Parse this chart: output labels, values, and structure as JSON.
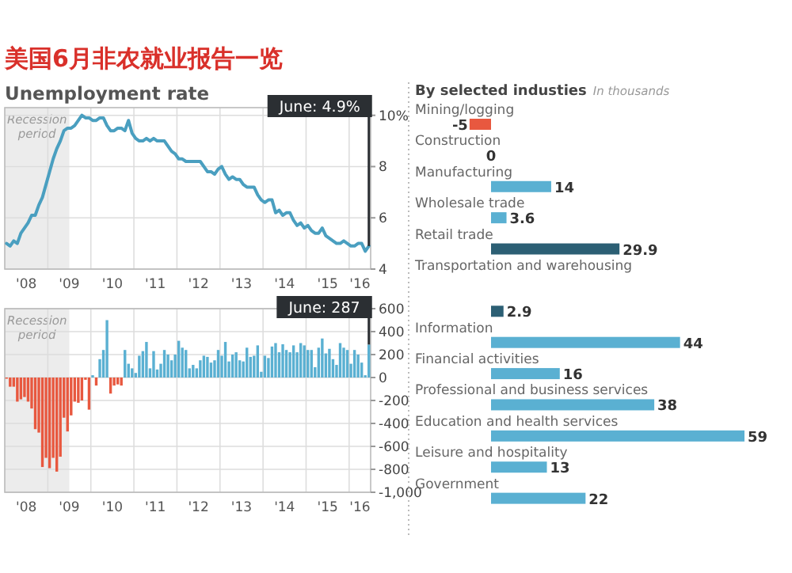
{
  "chart_data": [
    {
      "type": "line",
      "title": "美国6月非农就业报告一览",
      "subtitle": "Unemployment rate",
      "x": [
        "2008-01",
        "2008-02",
        "2008-03",
        "2008-04",
        "2008-05",
        "2008-06",
        "2008-07",
        "2008-08",
        "2008-09",
        "2008-10",
        "2008-11",
        "2008-12",
        "2009-01",
        "2009-02",
        "2009-03",
        "2009-04",
        "2009-05",
        "2009-06",
        "2009-07",
        "2009-08",
        "2009-09",
        "2009-10",
        "2009-11",
        "2009-12",
        "2010-01",
        "2010-02",
        "2010-03",
        "2010-04",
        "2010-05",
        "2010-06",
        "2010-07",
        "2010-08",
        "2010-09",
        "2010-10",
        "2010-11",
        "2010-12",
        "2011-01",
        "2011-02",
        "2011-03",
        "2011-04",
        "2011-05",
        "2011-06",
        "2011-07",
        "2011-08",
        "2011-09",
        "2011-10",
        "2011-11",
        "2011-12",
        "2012-01",
        "2012-02",
        "2012-03",
        "2012-04",
        "2012-05",
        "2012-06",
        "2012-07",
        "2012-08",
        "2012-09",
        "2012-10",
        "2012-11",
        "2012-12",
        "2013-01",
        "2013-02",
        "2013-03",
        "2013-04",
        "2013-05",
        "2013-06",
        "2013-07",
        "2013-08",
        "2013-09",
        "2013-10",
        "2013-11",
        "2013-12",
        "2014-01",
        "2014-02",
        "2014-03",
        "2014-04",
        "2014-05",
        "2014-06",
        "2014-07",
        "2014-08",
        "2014-09",
        "2014-10",
        "2014-11",
        "2014-12",
        "2015-01",
        "2015-02",
        "2015-03",
        "2015-04",
        "2015-05",
        "2015-06",
        "2015-07",
        "2015-08",
        "2015-09",
        "2015-10",
        "2015-11",
        "2015-12",
        "2016-01",
        "2016-02",
        "2016-03",
        "2016-04",
        "2016-05",
        "2016-06"
      ],
      "series": [
        {
          "color": "#4a9fc0",
          "values": [
            5.0,
            4.9,
            5.1,
            5.0,
            5.4,
            5.6,
            5.8,
            6.1,
            6.1,
            6.5,
            6.8,
            7.3,
            7.8,
            8.3,
            8.7,
            9.0,
            9.4,
            9.5,
            9.5,
            9.6,
            9.8,
            10.0,
            9.9,
            9.9,
            9.8,
            9.8,
            9.9,
            9.9,
            9.6,
            9.4,
            9.4,
            9.5,
            9.5,
            9.4,
            9.8,
            9.3,
            9.1,
            9.0,
            9.0,
            9.1,
            9.0,
            9.1,
            9.0,
            9.0,
            9.0,
            8.8,
            8.6,
            8.5,
            8.3,
            8.3,
            8.2,
            8.2,
            8.2,
            8.2,
            8.2,
            8.0,
            7.8,
            7.8,
            7.7,
            7.9,
            8.0,
            7.7,
            7.5,
            7.6,
            7.5,
            7.5,
            7.3,
            7.2,
            7.2,
            7.2,
            6.9,
            6.7,
            6.6,
            6.7,
            6.7,
            6.2,
            6.3,
            6.1,
            6.2,
            6.2,
            5.9,
            5.7,
            5.8,
            5.6,
            5.7,
            5.5,
            5.4,
            5.4,
            5.6,
            5.3,
            5.2,
            5.1,
            5.0,
            5.0,
            5.1,
            5.0,
            4.9,
            4.9,
            5.0,
            5.0,
            4.7,
            4.9
          ]
        }
      ],
      "xlim": [
        "2008-01",
        "2016-07"
      ],
      "xticks": [
        {
          "value": "2008-07",
          "label": "'08"
        },
        {
          "value": "2009-07",
          "label": "'09"
        },
        {
          "value": "2010-07",
          "label": "'10"
        },
        {
          "value": "2011-07",
          "label": "'11"
        },
        {
          "value": "2012-07",
          "label": "'12"
        },
        {
          "value": "2013-07",
          "label": "'13"
        },
        {
          "value": "2014-07",
          "label": "'14"
        },
        {
          "value": "2015-07",
          "label": "'15"
        },
        {
          "value": "2016-04",
          "label": "'16"
        },
        {
          "value": "2009-01",
          "label": null
        },
        {
          "value": "2010-01",
          "label": null
        },
        {
          "value": "2011-01",
          "label": null
        },
        {
          "value": "2012-01",
          "label": null
        },
        {
          "value": "2013-01",
          "label": null
        },
        {
          "value": "2014-01",
          "label": null
        },
        {
          "value": "2015-01",
          "label": null
        },
        {
          "value": "2016-01",
          "label": null
        }
      ],
      "ylim": [
        4,
        10.3
      ],
      "yticks": [
        4,
        6,
        8,
        {
          "value": 10,
          "label": "10%"
        }
      ],
      "grid": true,
      "bands": [
        {
          "axis": "x",
          "from": "2008-01",
          "to": "2009-07",
          "label": "Recession period",
          "color": "#ececec"
        }
      ],
      "annotations": [
        "June: 4.9%"
      ]
    },
    {
      "type": "bar",
      "x": [
        "2008-01",
        "2008-02",
        "2008-03",
        "2008-04",
        "2008-05",
        "2008-06",
        "2008-07",
        "2008-08",
        "2008-09",
        "2008-10",
        "2008-11",
        "2008-12",
        "2009-01",
        "2009-02",
        "2009-03",
        "2009-04",
        "2009-05",
        "2009-06",
        "2009-07",
        "2009-08",
        "2009-09",
        "2009-10",
        "2009-11",
        "2009-12",
        "2010-01",
        "2010-02",
        "2010-03",
        "2010-04",
        "2010-05",
        "2010-06",
        "2010-07",
        "2010-08",
        "2010-09",
        "2010-10",
        "2010-11",
        "2010-12",
        "2011-01",
        "2011-02",
        "2011-03",
        "2011-04",
        "2011-05",
        "2011-06",
        "2011-07",
        "2011-08",
        "2011-09",
        "2011-10",
        "2011-11",
        "2011-12",
        "2012-01",
        "2012-02",
        "2012-03",
        "2012-04",
        "2012-05",
        "2012-06",
        "2012-07",
        "2012-08",
        "2012-09",
        "2012-10",
        "2012-11",
        "2012-12",
        "2013-01",
        "2013-02",
        "2013-03",
        "2013-04",
        "2013-05",
        "2013-06",
        "2013-07",
        "2013-08",
        "2013-09",
        "2013-10",
        "2013-11",
        "2013-12",
        "2014-01",
        "2014-02",
        "2014-03",
        "2014-04",
        "2014-05",
        "2014-06",
        "2014-07",
        "2014-08",
        "2014-09",
        "2014-10",
        "2014-11",
        "2014-12",
        "2015-01",
        "2015-02",
        "2015-03",
        "2015-04",
        "2015-05",
        "2015-06",
        "2015-07",
        "2015-08",
        "2015-09",
        "2015-10",
        "2015-11",
        "2015-12",
        "2016-01",
        "2016-02",
        "2016-03",
        "2016-04",
        "2016-05",
        "2016-06"
      ],
      "values": [
        -10,
        -80,
        -80,
        -210,
        -190,
        -170,
        -210,
        -270,
        -450,
        -480,
        -780,
        -700,
        -790,
        -700,
        -820,
        -690,
        -350,
        -470,
        -330,
        -210,
        -220,
        -200,
        -20,
        -280,
        20,
        -70,
        160,
        240,
        500,
        -140,
        -70,
        -60,
        -70,
        240,
        120,
        80,
        40,
        190,
        230,
        310,
        80,
        230,
        70,
        120,
        240,
        200,
        150,
        200,
        320,
        260,
        240,
        80,
        110,
        80,
        150,
        190,
        180,
        130,
        150,
        240,
        190,
        310,
        140,
        200,
        220,
        150,
        140,
        260,
        180,
        190,
        280,
        50,
        190,
        170,
        270,
        300,
        220,
        290,
        240,
        220,
        280,
        220,
        300,
        280,
        240,
        240,
        90,
        260,
        340,
        210,
        250,
        160,
        110,
        300,
        260,
        240,
        120,
        240,
        200,
        130,
        20,
        287
      ],
      "colors": [
        "#e8583f",
        "#e8583f",
        "#e8583f",
        "#e8583f",
        "#e8583f",
        "#e8583f",
        "#e8583f",
        "#e8583f",
        "#e8583f",
        "#e8583f",
        "#e8583f",
        "#e8583f",
        "#e8583f",
        "#e8583f",
        "#e8583f",
        "#e8583f",
        "#e8583f",
        "#e8583f",
        "#e8583f",
        "#e8583f",
        "#e8583f",
        "#e8583f",
        "#e8583f",
        "#e8583f",
        "#5ab0d2",
        "#e8583f",
        "#5ab0d2",
        "#5ab0d2",
        "#5ab0d2",
        "#e8583f",
        "#e8583f",
        "#e8583f",
        "#e8583f",
        "#5ab0d2",
        "#5ab0d2",
        "#5ab0d2",
        "#5ab0d2",
        "#5ab0d2",
        "#5ab0d2",
        "#5ab0d2",
        "#5ab0d2",
        "#5ab0d2",
        "#5ab0d2",
        "#5ab0d2",
        "#5ab0d2",
        "#5ab0d2",
        "#5ab0d2",
        "#5ab0d2",
        "#5ab0d2",
        "#5ab0d2",
        "#5ab0d2",
        "#5ab0d2",
        "#5ab0d2",
        "#5ab0d2",
        "#5ab0d2",
        "#5ab0d2",
        "#5ab0d2",
        "#5ab0d2",
        "#5ab0d2",
        "#5ab0d2",
        "#5ab0d2",
        "#5ab0d2",
        "#5ab0d2",
        "#5ab0d2",
        "#5ab0d2",
        "#5ab0d2",
        "#5ab0d2",
        "#5ab0d2",
        "#5ab0d2",
        "#5ab0d2",
        "#5ab0d2",
        "#5ab0d2",
        "#5ab0d2",
        "#5ab0d2",
        "#5ab0d2",
        "#5ab0d2",
        "#5ab0d2",
        "#5ab0d2",
        "#5ab0d2",
        "#5ab0d2",
        "#5ab0d2",
        "#5ab0d2",
        "#5ab0d2",
        "#5ab0d2",
        "#5ab0d2",
        "#5ab0d2",
        "#5ab0d2",
        "#5ab0d2",
        "#5ab0d2",
        "#5ab0d2",
        "#5ab0d2",
        "#5ab0d2",
        "#5ab0d2",
        "#5ab0d2",
        "#5ab0d2",
        "#5ab0d2",
        "#5ab0d2",
        "#5ab0d2",
        "#5ab0d2",
        "#5ab0d2",
        "#5ab0d2",
        "#5ab0d2"
      ],
      "xlim": [
        "2008-01",
        "2016-07"
      ],
      "xticks": [
        {
          "value": "2008-07",
          "label": "'08"
        },
        {
          "value": "2009-07",
          "label": "'09"
        },
        {
          "value": "2010-07",
          "label": "'10"
        },
        {
          "value": "2011-07",
          "label": "'11"
        },
        {
          "value": "2012-07",
          "label": "'12"
        },
        {
          "value": "2013-07",
          "label": "'13"
        },
        {
          "value": "2014-07",
          "label": "'14"
        },
        {
          "value": "2015-07",
          "label": "'15"
        },
        {
          "value": "2016-04",
          "label": "'16"
        },
        {
          "value": "2009-01",
          "label": null
        },
        {
          "value": "2010-01",
          "label": null
        },
        {
          "value": "2011-01",
          "label": null
        },
        {
          "value": "2012-01",
          "label": null
        },
        {
          "value": "2013-01",
          "label": null
        },
        {
          "value": "2014-01",
          "label": null
        },
        {
          "value": "2015-01",
          "label": null
        },
        {
          "value": "2016-01",
          "label": null
        }
      ],
      "ylim": [
        -1000,
        600
      ],
      "yticks": [
        {
          "value": -1000,
          "label": "-1,000"
        },
        -800,
        -600,
        -400,
        -200,
        0,
        200,
        400,
        600
      ],
      "grid": true,
      "bands": [
        {
          "axis": "x",
          "from": "2008-01",
          "to": "2009-07",
          "label": "Recession period",
          "color": "#ececec"
        }
      ],
      "annotations": [
        {
          "text": "June: 287",
          "x": "2016-06",
          "y": 287
        }
      ]
    },
    {
      "type": "bar",
      "orientation": "horizontal",
      "title": "By selected industies",
      "subtitle": "In thousands",
      "data_labels": true,
      "categories": [
        "Mining/logging",
        "Construction",
        "Manufacturing",
        "Wholesale trade",
        "Retail trade",
        "Transportation and warehousing",
        null,
        "Information",
        "Financial activities",
        "Professional and business services",
        "Education and health services",
        "Leisure and hospitality",
        "Government"
      ],
      "values": [
        -5,
        0,
        14,
        3.6,
        29.9,
        null,
        2.9,
        44,
        16,
        38,
        59,
        13,
        22
      ],
      "colors": [
        "#e8583f",
        "#5ab0d2",
        "#5ab0d2",
        "#5ab0d2",
        "#2c5f74",
        null,
        "#2c5f74",
        "#5ab0d2",
        "#5ab0d2",
        "#5ab0d2",
        "#5ab0d2",
        "#5ab0d2",
        "#5ab0d2"
      ]
    }
  ]
}
